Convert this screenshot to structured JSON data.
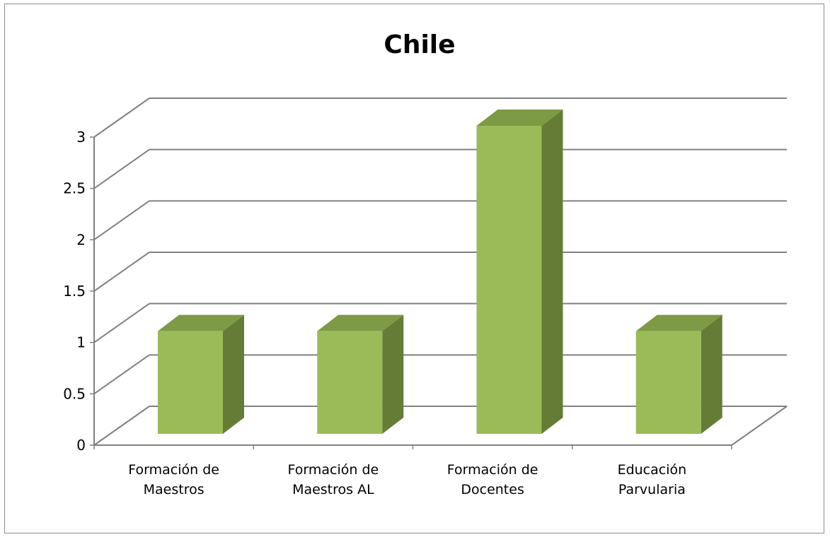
{
  "chart_data": {
    "type": "bar",
    "title": "Chile",
    "categories": [
      [
        "Formación de",
        "Maestros"
      ],
      [
        "Formación de",
        "Maestros AL"
      ],
      [
        "Formación de",
        "Docentes"
      ],
      [
        "Educación",
        "Parvularia"
      ]
    ],
    "values": [
      1,
      1,
      3,
      1
    ],
    "yticks": [
      "0",
      "0.5",
      "1",
      "1.5",
      "2",
      "2.5",
      "3"
    ],
    "ylim": [
      0,
      3
    ],
    "grid": true,
    "legend": false,
    "colors": {
      "bar_front": "#9bbb59",
      "bar_side": "#657c36",
      "bar_top": "#7d9a44",
      "grid": "#808080"
    }
  }
}
